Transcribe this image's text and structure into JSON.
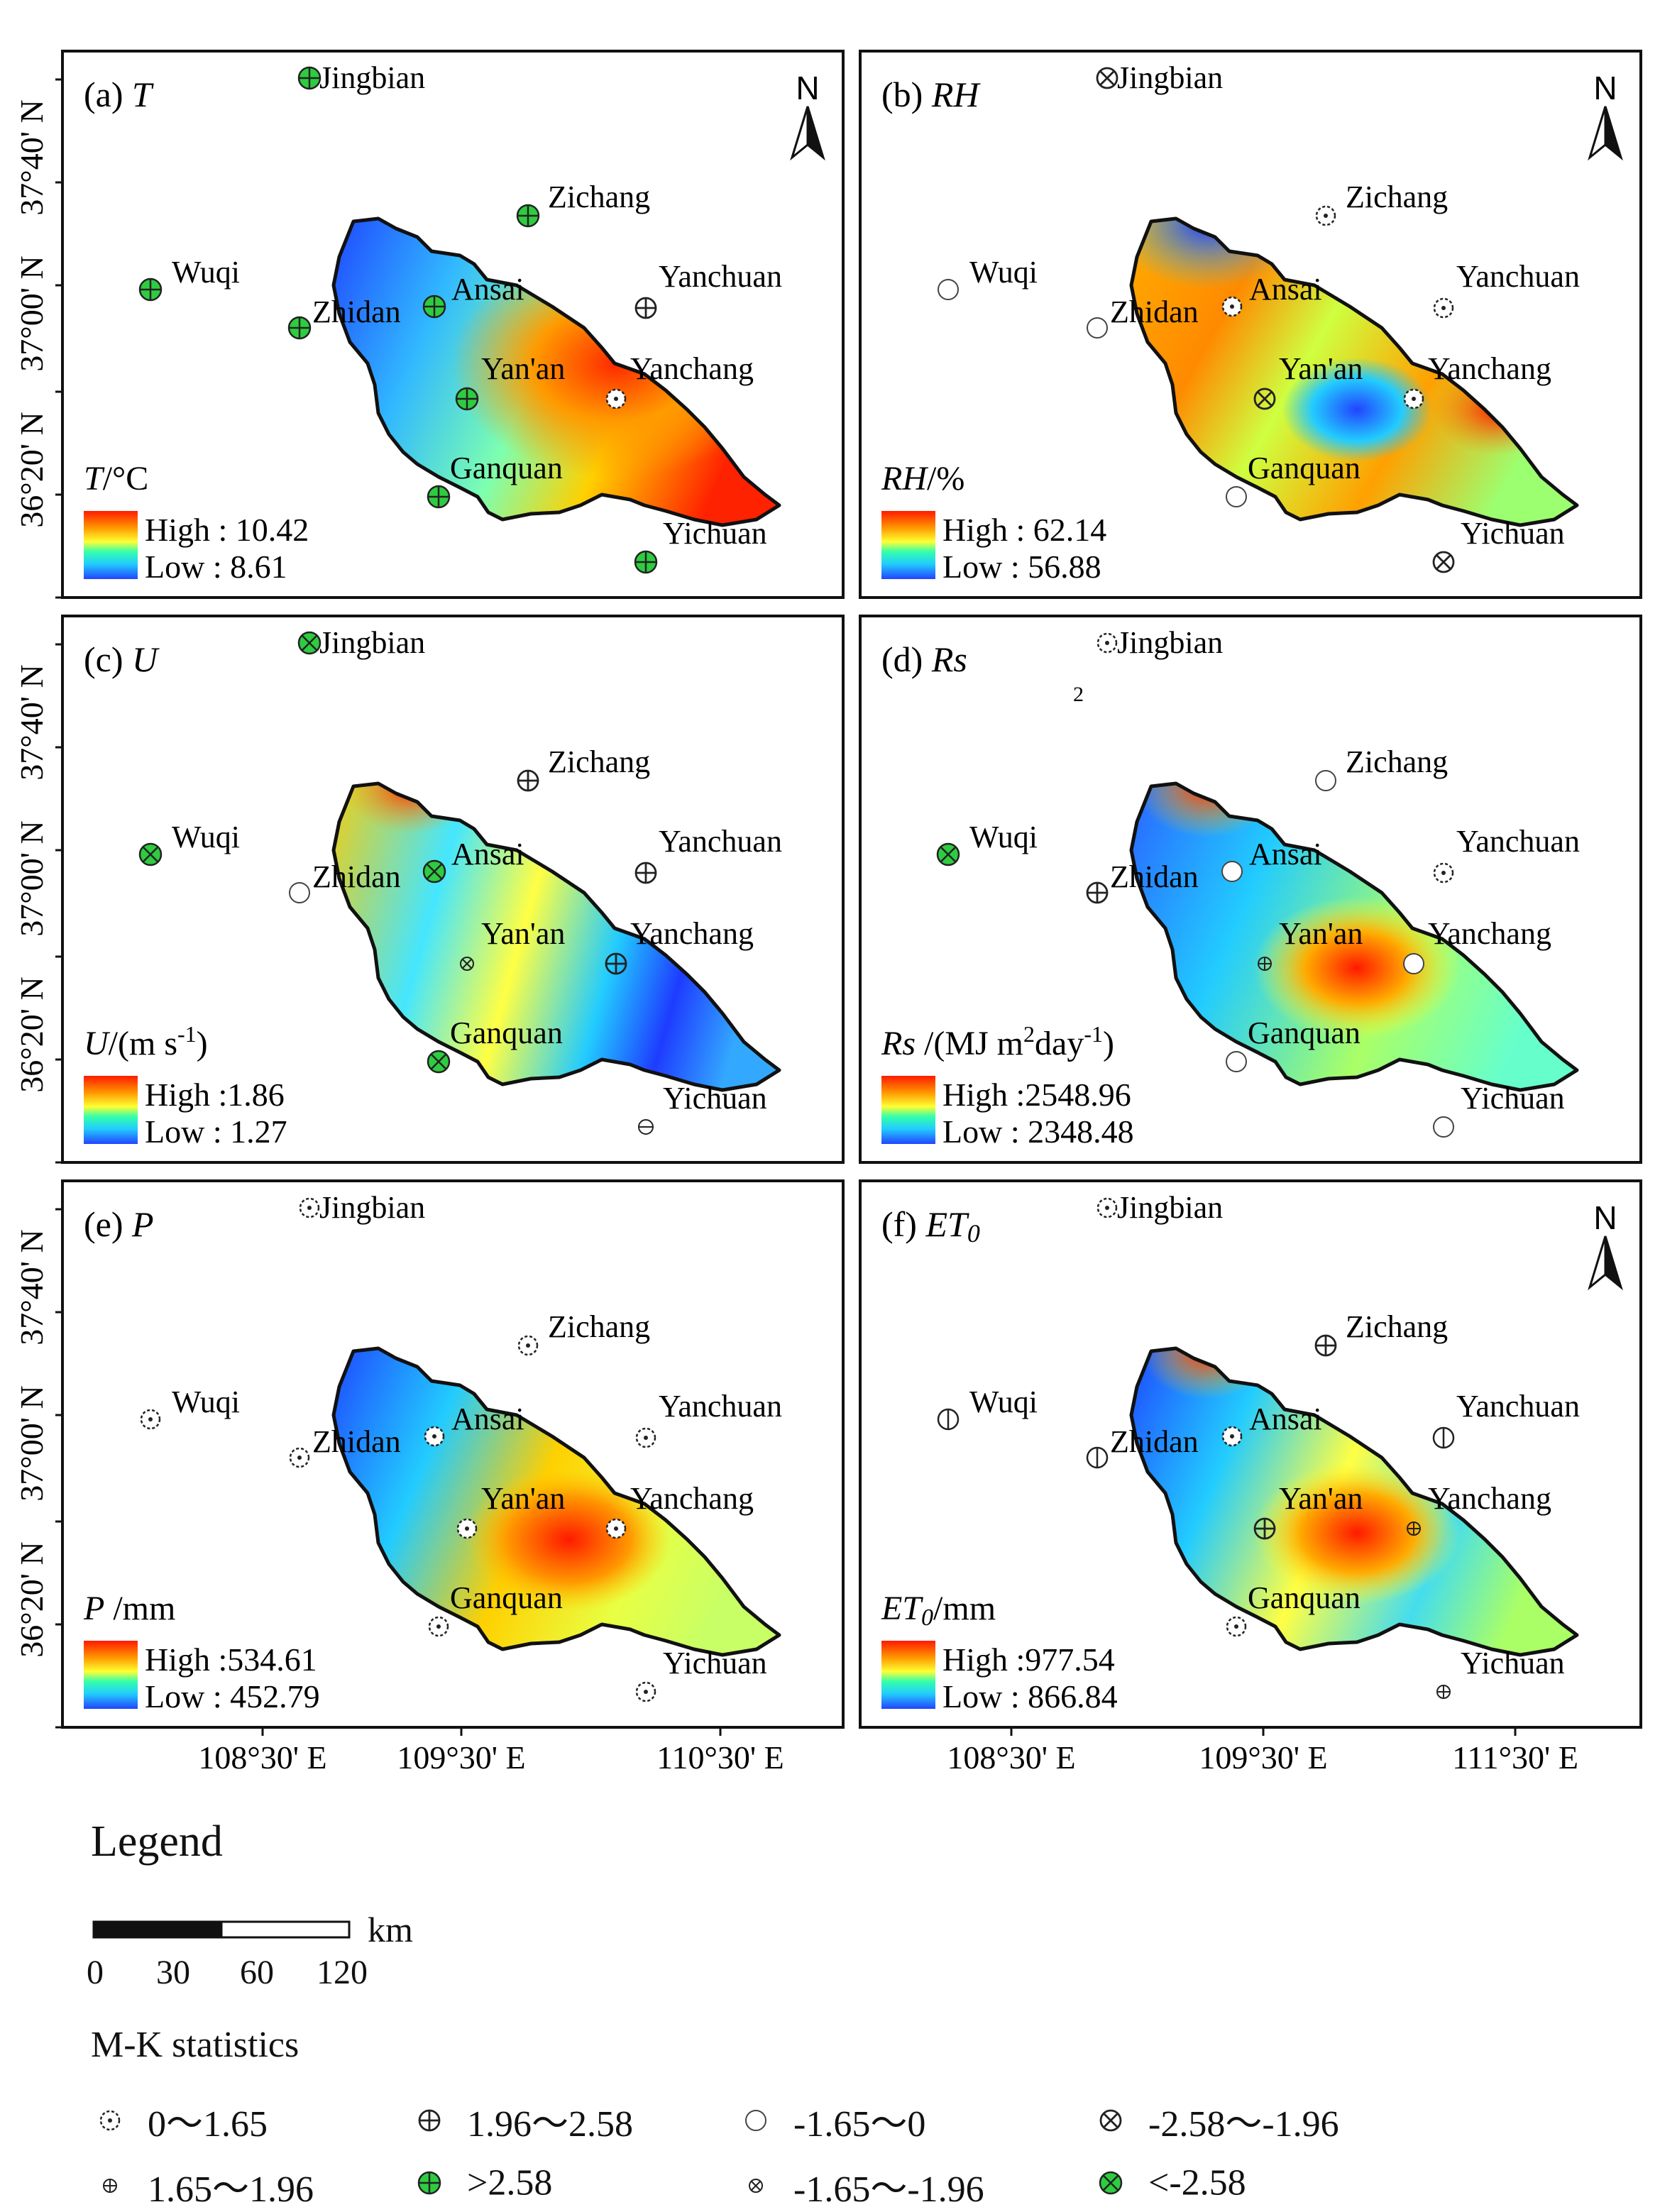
{
  "panels": [
    {
      "id": "a",
      "label": "(a)",
      "var": "T",
      "unit_prefix": "T",
      "unit_suffix": "/°C",
      "high": "High : 10.42",
      "low": "Low : 8.61",
      "north": "N",
      "stations": {
        "Jingbian": ">2.58",
        "Zichang": ">2.58",
        "Wuqi": ">2.58",
        "Zhidan": ">2.58",
        "Ansai": ">2.58",
        "Yanchuan": "1.96~2.58",
        "Yan'an": ">2.58",
        "Yanchang": "0~1.65",
        "Ganquan": ">2.58",
        "Yichuan": ">2.58"
      }
    },
    {
      "id": "b",
      "label": "(b)",
      "var": "RH",
      "unit_prefix": "RH",
      "unit_suffix": "/%",
      "high": "High : 62.14",
      "low": "Low : 56.88",
      "north": "N",
      "stations": {
        "Jingbian": "-2.58~-1.96",
        "Zichang": "0~1.65",
        "Wuqi": "-1.65~0",
        "Zhidan": "-1.65~0",
        "Ansai": "0~1.65",
        "Yanchuan": "0~1.65",
        "Yan'an": "-2.58~-1.96",
        "Yanchang": "0~1.65",
        "Ganquan": "-1.65~0",
        "Yichuan": "-2.58~-1.96"
      }
    },
    {
      "id": "c",
      "label": "(c)",
      "var": "U",
      "unit_prefix": "U",
      "unit_suffix": "/(m s",
      "unit_sup": "-1",
      "unit_end": ")",
      "high": "High :1.86",
      "low": "Low : 1.27",
      "north": "",
      "stations": {
        "Jingbian": "<-2.58",
        "Zichang": "1.96~2.58",
        "Wuqi": "<-2.58",
        "Zhidan": "-1.65~0",
        "Ansai": "<-2.58",
        "Yanchuan": "1.96~2.58",
        "Yan'an": "-1.65~-1.96",
        "Yanchang": "1.96~2.58",
        "Ganquan": "<-2.58",
        "Yichuan": "1.65~1.96"
      }
    },
    {
      "id": "d",
      "label": "(d)",
      "var": "Rs",
      "unit_prefix": "Rs",
      "unit_suffix": " /(MJ m",
      "unit_sup": "2",
      "unit_mid": "day",
      "unit_sup2": "-1",
      "unit_end": ")",
      "stray": "2",
      "high": "High :2548.96",
      "low": "Low : 2348.48",
      "north": "",
      "stations": {
        "Jingbian": "0~1.65",
        "Zichang": "-1.65~0",
        "Wuqi": "<-2.58",
        "Zhidan": "1.96~2.58",
        "Ansai": "-1.65~0",
        "Yanchuan": "0~1.65",
        "Yan'an": "1.65~1.96",
        "Yanchang": "-1.65~0",
        "Ganquan": "-1.65~0",
        "Yichuan": "-1.65~0"
      }
    },
    {
      "id": "e",
      "label": "(e)",
      "var": "P",
      "unit_prefix": "P",
      "unit_suffix": " /mm",
      "high": "High :534.61",
      "low": "Low : 452.79",
      "north": "",
      "stations": {
        "Jingbian": "0~1.65",
        "Zichang": "0~1.65",
        "Wuqi": "0~1.65",
        "Zhidan": "0~1.65",
        "Ansai": "0~1.65",
        "Yanchuan": "0~1.65",
        "Yan'an": "0~1.65",
        "Yanchang": "0~1.65",
        "Ganquan": "0~1.65",
        "Yichuan": "0~1.65"
      }
    },
    {
      "id": "f",
      "label": "(f)",
      "var": "ET",
      "var_sub": "0",
      "unit_prefix": "ET",
      "unit_sub": "0",
      "unit_suffix": "/mm",
      "high": "High :977.54",
      "low": "Low : 866.84",
      "north": "N",
      "stations": {
        "Jingbian": "0~1.65",
        "Zichang": "1.96~2.58",
        "Wuqi": "-1.65~0",
        "Zhidan": "-1.65~0",
        "Ansai": "0~1.65",
        "Yanchuan": "-1.65~0",
        "Yan'an": "1.96~2.58",
        "Yanchang": "1.65~1.96",
        "Ganquan": "0~1.65",
        "Yichuan": "1.65~1.96"
      }
    }
  ],
  "y_ticks": [
    "37°40' N",
    "37°00' N",
    "36°20' N"
  ],
  "x_ticks_left": [
    "108°30' E",
    "109°30' E",
    "110°30' E"
  ],
  "x_ticks_right": [
    "108°30' E",
    "109°30' E",
    "111°30' E"
  ],
  "legend": {
    "title": "Legend",
    "scale_unit": "km",
    "scale_labels": [
      "0",
      "30",
      "60",
      "120"
    ],
    "mk_title": "M-K statistics",
    "mk_items": [
      {
        "sym": "0~1.65",
        "label": "0～1.65"
      },
      {
        "sym": "1.96~2.58",
        "label": "1.96～2.58"
      },
      {
        "sym": "-1.65~0",
        "label": "-1.65～0"
      },
      {
        "sym": "-2.58~-1.96",
        "label": "-2.58～-1.96"
      },
      {
        "sym": "1.65~1.96",
        "label": "1.65～1.96"
      },
      {
        "sym": ">2.58",
        "label": ">2.58"
      },
      {
        "sym": "-1.65~-1.96",
        "label": "-1.65～-1.96"
      },
      {
        "sym": "<-2.58",
        "label": "<-2.58"
      }
    ]
  },
  "colors": {
    "frame": "#111111",
    "green": "#2ecc40",
    "dark_red": "#c0271a",
    "dark_blue": "#1f3bd6"
  }
}
